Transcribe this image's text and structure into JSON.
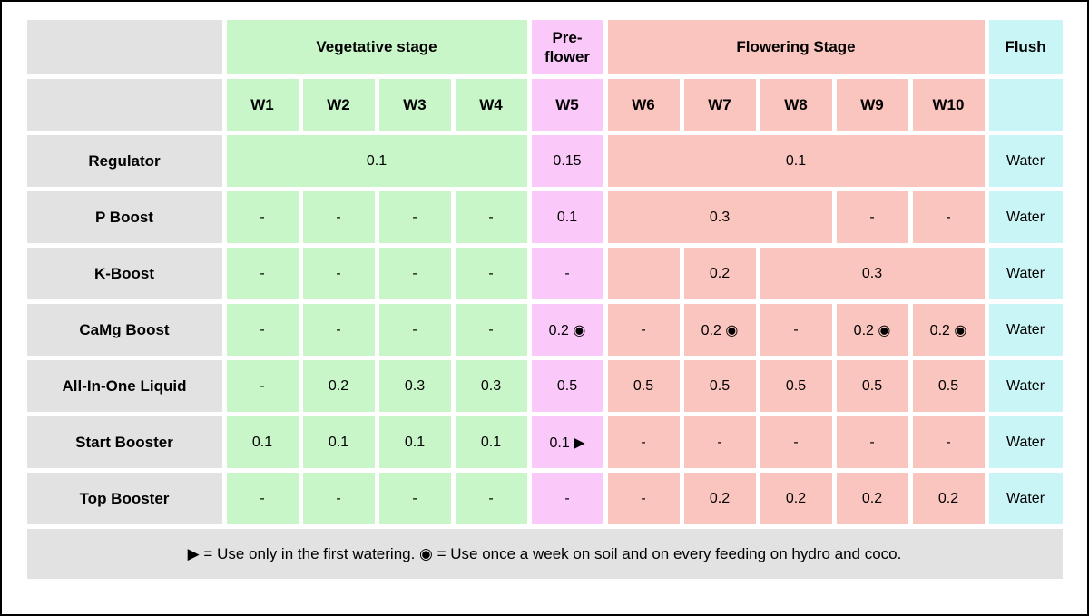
{
  "colors": {
    "green": "#C8F6C8",
    "pink": "#FBC8FA",
    "salmon": "#FBC5BF",
    "cyan": "#C9F5F6",
    "gray": "#E2E2E2",
    "border": "#000000",
    "bg": "#FFFFFF"
  },
  "header": {
    "stages": {
      "vegetative": "Vegetative stage",
      "preflower": "Pre-flower",
      "flowering": "Flowering Stage",
      "flush": "Flush"
    },
    "weeks": [
      "W1",
      "W2",
      "W3",
      "W4",
      "W5",
      "W6",
      "W7",
      "W8",
      "W9",
      "W10"
    ]
  },
  "rows": [
    {
      "label": "Regulator",
      "cells": [
        "0.1",
        "0.15",
        "0.1",
        "Water"
      ]
    },
    {
      "label": "P Boost",
      "cells": [
        "-",
        "-",
        "-",
        "-",
        "0.1",
        "0.3",
        "-",
        "-",
        "Water"
      ]
    },
    {
      "label": "K-Boost",
      "cells": [
        "-",
        "-",
        "-",
        "-",
        "-",
        "",
        "0.2",
        "0.3",
        "Water"
      ]
    },
    {
      "label": "CaMg Boost",
      "cells": [
        "-",
        "-",
        "-",
        "-",
        "0.2 ◉",
        "-",
        "0.2 ◉",
        "-",
        "0.2 ◉",
        "0.2 ◉",
        "Water"
      ]
    },
    {
      "label": "All-In-One Liquid",
      "cells": [
        "-",
        "0.2",
        "0.3",
        "0.3",
        "0.5",
        "0.5",
        "0.5",
        "0.5",
        "0.5",
        "0.5",
        "Water"
      ]
    },
    {
      "label": "Start Booster",
      "cells": [
        "0.1",
        "0.1",
        "0.1",
        "0.1",
        "0.1 ▶",
        "-",
        "-",
        "-",
        "-",
        "-",
        "Water"
      ]
    },
    {
      "label": "Top Booster",
      "cells": [
        "-",
        "-",
        "-",
        "-",
        "-",
        "-",
        "0.2",
        "0.2",
        "0.2",
        "0.2",
        "Water"
      ]
    }
  ],
  "footer": {
    "legend": "▶ = Use only in the first watering. ◉ = Use once a week on soil and on every feeding on hydro and coco."
  },
  "chart_data": {
    "type": "table",
    "title": "Nutrient feeding schedule",
    "stage_groups": [
      {
        "label": "Vegetative stage",
        "weeks": [
          "W1",
          "W2",
          "W3",
          "W4"
        ]
      },
      {
        "label": "Pre-flower",
        "weeks": [
          "W5"
        ]
      },
      {
        "label": "Flowering Stage",
        "weeks": [
          "W6",
          "W7",
          "W8",
          "W9",
          "W10"
        ]
      },
      {
        "label": "Flush",
        "weeks": []
      }
    ],
    "columns": [
      "W1",
      "W2",
      "W3",
      "W4",
      "W5",
      "W6",
      "W7",
      "W8",
      "W9",
      "W10",
      "Flush"
    ],
    "rows": [
      {
        "product": "Regulator",
        "values": [
          "0.1",
          "0.1",
          "0.1",
          "0.1",
          "0.15",
          "0.1",
          "0.1",
          "0.1",
          "0.1",
          "0.1",
          "Water"
        ]
      },
      {
        "product": "P Boost",
        "values": [
          "-",
          "-",
          "-",
          "-",
          "0.1",
          "0.3",
          "0.3",
          "0.3",
          "-",
          "-",
          "Water"
        ]
      },
      {
        "product": "K-Boost",
        "values": [
          "-",
          "-",
          "-",
          "-",
          "-",
          "",
          "0.2",
          "0.3",
          "0.3",
          "0.3",
          "Water"
        ]
      },
      {
        "product": "CaMg Boost",
        "values": [
          "-",
          "-",
          "-",
          "-",
          "0.2 ◉",
          "-",
          "0.2 ◉",
          "-",
          "0.2 ◉",
          "0.2 ◉",
          "Water"
        ]
      },
      {
        "product": "All-In-One Liquid",
        "values": [
          "-",
          "0.2",
          "0.3",
          "0.3",
          "0.5",
          "0.5",
          "0.5",
          "0.5",
          "0.5",
          "0.5",
          "Water"
        ]
      },
      {
        "product": "Start Booster",
        "values": [
          "0.1",
          "0.1",
          "0.1",
          "0.1",
          "0.1 ▶",
          "-",
          "-",
          "-",
          "-",
          "-",
          "Water"
        ]
      },
      {
        "product": "Top Booster",
        "values": [
          "-",
          "-",
          "-",
          "-",
          "-",
          "-",
          "0.2",
          "0.2",
          "0.2",
          "0.2",
          "Water"
        ]
      }
    ],
    "legend": "▶ = Use only in the first watering. ◉ = Use once a week on soil and on every feeding on hydro and coco."
  }
}
